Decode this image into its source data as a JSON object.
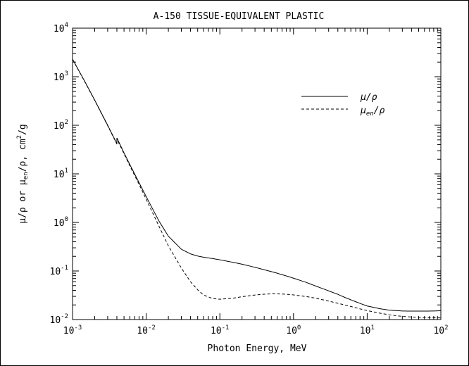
{
  "chart_data": {
    "type": "line",
    "title": "A-150 TISSUE-EQUIVALENT PLASTIC",
    "xlabel": "Photon Energy, MeV",
    "ylabel_parts": {
      "mu": "μ",
      "rho": "ρ",
      "en": "en",
      "or": "or",
      "units_base": "cm",
      "units_exp": "2",
      "units_tail": "/g"
    },
    "x_scale": "log",
    "y_scale": "log",
    "xlim": [
      0.001,
      100
    ],
    "ylim": [
      0.01,
      10000
    ],
    "grid": false,
    "legend_position": "top-right",
    "x_ticks": [
      {
        "base": "10",
        "exp": "-3",
        "value": 0.001
      },
      {
        "base": "10",
        "exp": "-2",
        "value": 0.01
      },
      {
        "base": "10",
        "exp": "-1",
        "value": 0.1
      },
      {
        "base": "10",
        "exp": "0",
        "value": 1
      },
      {
        "base": "10",
        "exp": "1",
        "value": 10
      },
      {
        "base": "10",
        "exp": "2",
        "value": 100
      }
    ],
    "y_ticks": [
      {
        "base": "10",
        "exp": "-2",
        "value": 0.01
      },
      {
        "base": "10",
        "exp": "-1",
        "value": 0.1
      },
      {
        "base": "10",
        "exp": "0",
        "value": 1
      },
      {
        "base": "10",
        "exp": "1",
        "value": 10
      },
      {
        "base": "10",
        "exp": "2",
        "value": 100
      },
      {
        "base": "10",
        "exp": "3",
        "value": 1000
      },
      {
        "base": "10",
        "exp": "4",
        "value": 10000
      }
    ],
    "series": [
      {
        "name": "μ/ρ",
        "style": "solid",
        "x": [
          0.001,
          0.0015,
          0.002,
          0.003,
          0.004,
          0.004001,
          0.005,
          0.006,
          0.008,
          0.01,
          0.015,
          0.02,
          0.03,
          0.04,
          0.05,
          0.06,
          0.08,
          0.1,
          0.15,
          0.2,
          0.3,
          0.4,
          0.5,
          0.6,
          0.8,
          1,
          1.5,
          2,
          3,
          4,
          5,
          6,
          8,
          10,
          15,
          20,
          30,
          40,
          50,
          60,
          80,
          100
        ],
        "y": [
          2300,
          750,
          330,
          100,
          42,
          55,
          27,
          15.5,
          6.6,
          3.4,
          1.05,
          0.52,
          0.28,
          0.225,
          0.203,
          0.192,
          0.18,
          0.17,
          0.151,
          0.138,
          0.119,
          0.106,
          0.097,
          0.09,
          0.079,
          0.071,
          0.058,
          0.049,
          0.039,
          0.033,
          0.0285,
          0.0255,
          0.0215,
          0.019,
          0.0167,
          0.0156,
          0.015,
          0.0149,
          0.0149,
          0.0149,
          0.015,
          0.0152
        ]
      },
      {
        "name": "μen/ρ",
        "style": "dashed",
        "x": [
          0.001,
          0.0015,
          0.002,
          0.003,
          0.004,
          0.004001,
          0.005,
          0.006,
          0.008,
          0.01,
          0.015,
          0.02,
          0.03,
          0.04,
          0.05,
          0.06,
          0.08,
          0.1,
          0.15,
          0.2,
          0.3,
          0.4,
          0.5,
          0.6,
          0.8,
          1,
          1.5,
          2,
          3,
          4,
          5,
          6,
          8,
          10,
          15,
          20,
          30,
          40,
          50,
          60,
          80,
          100
        ],
        "y": [
          2290,
          740,
          325,
          98,
          41,
          52,
          26,
          14.6,
          6.1,
          3.0,
          0.82,
          0.33,
          0.115,
          0.06,
          0.041,
          0.032,
          0.027,
          0.0262,
          0.0275,
          0.0295,
          0.032,
          0.0333,
          0.0338,
          0.0338,
          0.0332,
          0.0322,
          0.0297,
          0.0275,
          0.024,
          0.0216,
          0.0199,
          0.0186,
          0.0166,
          0.0153,
          0.0135,
          0.0125,
          0.0116,
          0.0113,
          0.0111,
          0.011,
          0.0109,
          0.0108
        ]
      }
    ]
  }
}
